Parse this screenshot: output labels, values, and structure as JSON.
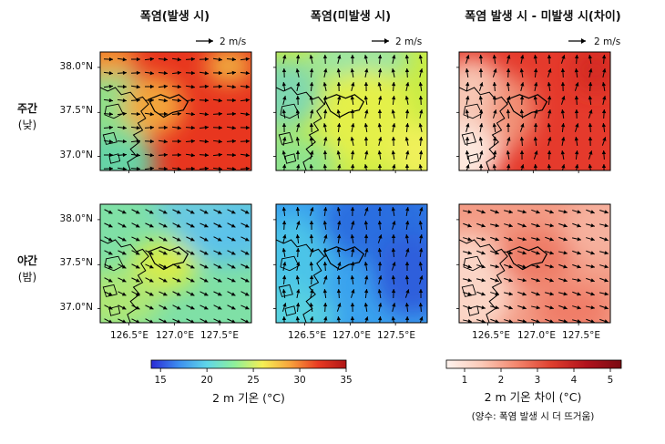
{
  "columns": [
    "폭염(발생 시)",
    "폭염(미발생 시)",
    "폭염 발생 시 - 미발생 시(차이)"
  ],
  "rows": [
    {
      "main": "주간",
      "sub": "(낮)"
    },
    {
      "main": "야간",
      "sub": "(밤)"
    }
  ],
  "wind_reference": "2 m/s",
  "lat_ticks": [
    "38.0°N",
    "37.5°N",
    "37.0°N"
  ],
  "lon_ticks": [
    "126.5°E",
    "127.0°E",
    "127.5°E"
  ],
  "colorbar_temp": {
    "label": "2 m 기온 (°C)",
    "ticks": [
      "15",
      "20",
      "25",
      "30",
      "35"
    ],
    "range": [
      14,
      35
    ],
    "colors": [
      "#2b2bd6",
      "#3d8ff0",
      "#5fd6e8",
      "#8ff09a",
      "#f5f054",
      "#f7a23c",
      "#e83a22",
      "#b01616"
    ]
  },
  "colorbar_diff": {
    "label": "2 m 기온 차이 (°C)",
    "note": "(양수: 폭염 발생 시 더 뜨거움)",
    "ticks": [
      "1",
      "2",
      "3",
      "4",
      "5"
    ],
    "range": [
      0.5,
      5.3
    ],
    "colors": [
      "#fff3ee",
      "#fbcab8",
      "#f3876e",
      "#de3f2e",
      "#b1121c",
      "#7a0a12"
    ]
  },
  "chart_data": {
    "type": "heatmap",
    "description_units": "2 m air temperature (°C) with 10 m wind vectors over the Seoul metropolitan area",
    "lon_range": [
      126.1,
      127.85
    ],
    "lat_range": [
      36.82,
      38.12
    ],
    "panels": [
      {
        "row": "주간",
        "column": "폭염(발생 시)",
        "temp_range_c": [
          24,
          34
        ],
        "mean_wind_direction": "westerly (toward east)"
      },
      {
        "row": "주간",
        "column": "폭염(미발생 시)",
        "temp_range_c": [
          24,
          29
        ],
        "mean_wind_direction": "southerly (toward north)"
      },
      {
        "row": "주간",
        "column": "폭염 발생 시 - 미발생 시(차이)",
        "diff_range_c": [
          1,
          5
        ],
        "mean_wind_direction": "southerly"
      },
      {
        "row": "야간",
        "column": "폭염(발생 시)",
        "temp_range_c": [
          22,
          28
        ],
        "mean_wind_direction": "northwesterly (toward southeast)"
      },
      {
        "row": "야간",
        "column": "폭염(미발생 시)",
        "temp_range_c": [
          16,
          23
        ],
        "mean_wind_direction": "southerly"
      },
      {
        "row": "야간",
        "column": "폭염 발생 시 - 미발생 시(차이)",
        "diff_range_c": [
          1,
          4
        ],
        "mean_wind_direction": "northwesterly"
      }
    ]
  }
}
